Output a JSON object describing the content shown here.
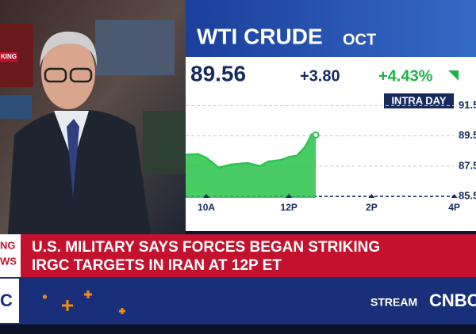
{
  "broadcast": {
    "corner_tag": "KING",
    "breaking_label": [
      "NG",
      "WS"
    ],
    "headline": [
      "U.S. MILITARY SAYS FORCES BEGAN STRIKING",
      "IRGC TARGETS IN IRAN AT 12P ET"
    ],
    "side_logo": "C",
    "stream": "STREAM",
    "network": "CNBC"
  },
  "chart_data": {
    "type": "area",
    "title": "WTI CRUDE",
    "subtitle": "OCT",
    "price": 89.56,
    "change": "+3.80",
    "change_pct": "+4.43%",
    "range_label": "INTRA DAY",
    "color": "#2ec44f",
    "fill": "#29c24a",
    "x": [
      9.5,
      9.8,
      10,
      10.3,
      10.6,
      11,
      11.3,
      11.5,
      11.8,
      12,
      12.2,
      12.4,
      12.55,
      12.65
    ],
    "values": [
      88.25,
      88.3,
      88.05,
      87.4,
      87.6,
      87.7,
      87.5,
      87.8,
      87.9,
      88.1,
      88.2,
      88.8,
      89.6,
      89.56
    ],
    "xlim": [
      9.5,
      16.2
    ],
    "xticks": [
      {
        "value": 10,
        "label": "10A"
      },
      {
        "value": 12,
        "label": "12P"
      },
      {
        "value": 14,
        "label": "2P"
      },
      {
        "value": 16,
        "label": "4P"
      }
    ],
    "ylim": [
      85.4,
      92.2
    ],
    "yticks": [
      85.5,
      87.5,
      89.5,
      91.5
    ],
    "grid": true
  }
}
